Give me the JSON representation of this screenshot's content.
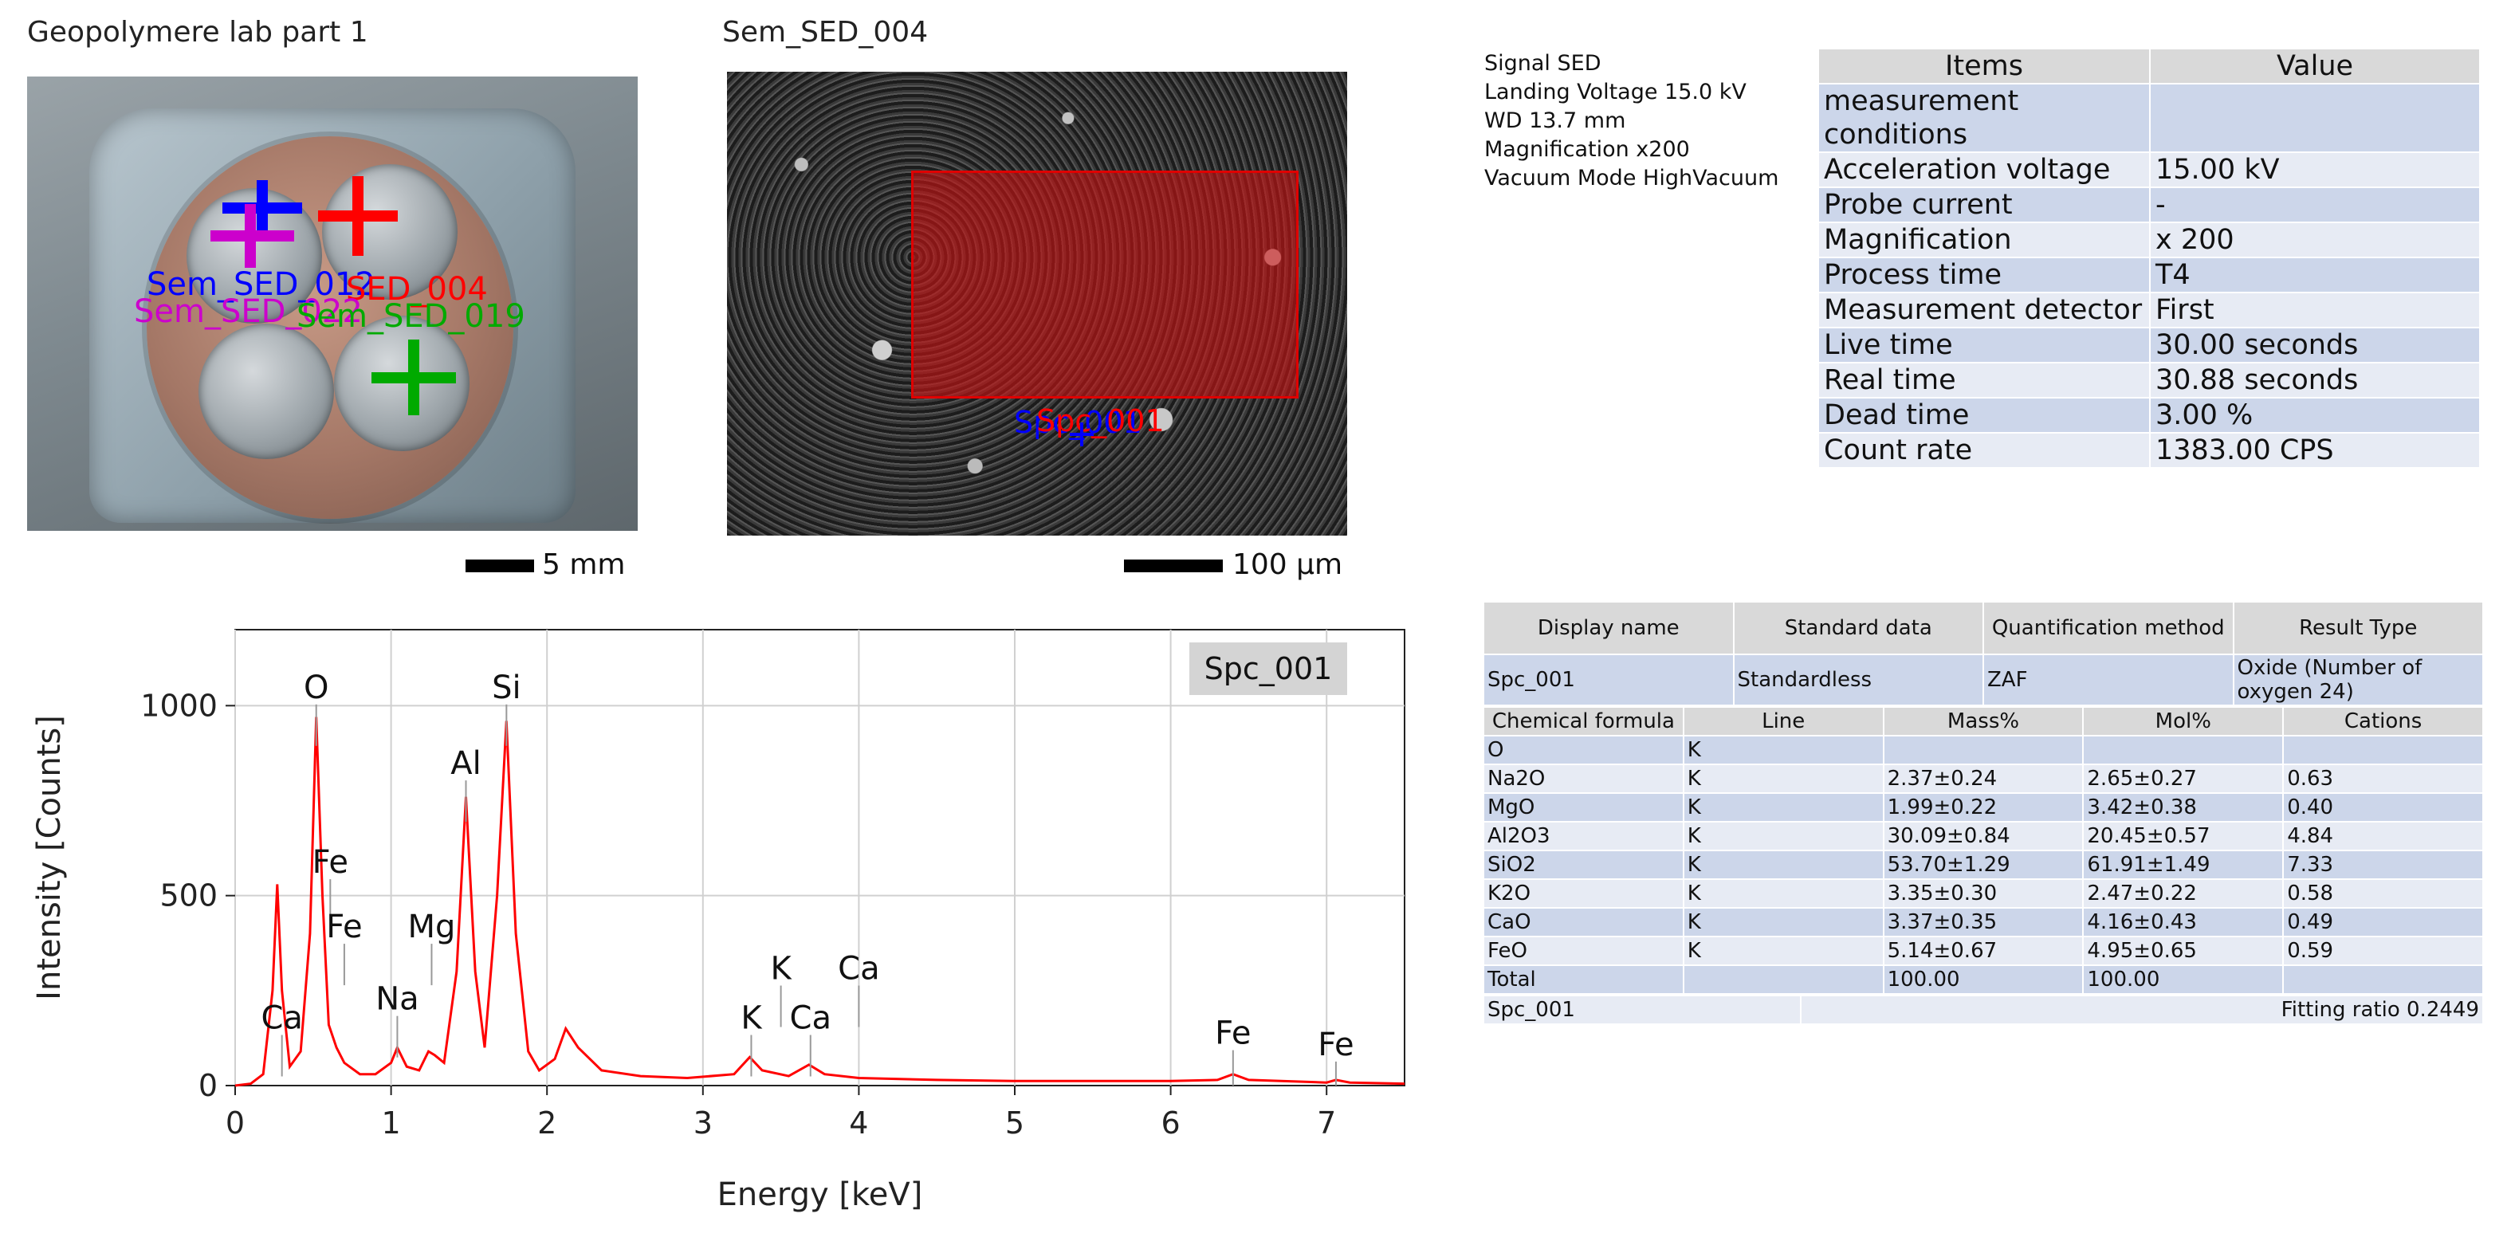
{
  "photo": {
    "title": "Geopolymere lab part 1",
    "markers": [
      {
        "label": "Sem_SED_012",
        "color": "#0000ff"
      },
      {
        "label": "SED_004",
        "color": "#ff0000"
      },
      {
        "label": "Sem_SED_022",
        "color": "#cc00cc"
      },
      {
        "label": "Sem_SED_019",
        "color": "#00aa00"
      }
    ],
    "scale_label": "5 mm"
  },
  "sem": {
    "title": "Sem_SED_004",
    "roi_color": "#e00000",
    "labels": [
      {
        "text": "Spc_001",
        "color": "#0000ff"
      },
      {
        "text": "Spc_001",
        "color": "#ff0000"
      }
    ],
    "scale_label": "100 µm"
  },
  "info": {
    "lines": [
      "Signal SED",
      "Landing Voltage 15.0 kV",
      "WD 13.7 mm",
      "Magnification x200",
      "Vacuum Mode HighVacuum"
    ]
  },
  "conditions": {
    "headers": [
      "Items",
      "Value"
    ],
    "rows": [
      [
        "measurement conditions",
        ""
      ],
      [
        "Acceleration voltage",
        "15.00 kV"
      ],
      [
        "Probe current",
        "-"
      ],
      [
        "Magnification",
        "x 200"
      ],
      [
        "Process time",
        "T4"
      ],
      [
        "Measurement detector",
        "First"
      ],
      [
        "Live time",
        "30.00 seconds"
      ],
      [
        "Real time",
        "30.88 seconds"
      ],
      [
        "Dead time",
        "3.00 %"
      ],
      [
        "Count rate",
        "1383.00 CPS"
      ]
    ]
  },
  "results": {
    "headers": [
      "Display name",
      "Standard data",
      "Quantification method",
      "Result Type"
    ],
    "spc": [
      "Spc_001",
      "Standardless",
      "ZAF",
      "Oxide (Number of oxygen 24)"
    ],
    "element_headers": [
      "Chemical formula",
      "Line",
      "Mass%",
      "Mol%",
      "Cations"
    ],
    "rows": [
      [
        "O",
        "K",
        "",
        "",
        ""
      ],
      [
        "Na2O",
        "K",
        "2.37±0.24",
        "2.65±0.27",
        "0.63"
      ],
      [
        "MgO",
        "K",
        "1.99±0.22",
        "3.42±0.38",
        "0.40"
      ],
      [
        "Al2O3",
        "K",
        "30.09±0.84",
        "20.45±0.57",
        "4.84"
      ],
      [
        "SiO2",
        "K",
        "53.70±1.29",
        "61.91±1.49",
        "7.33"
      ],
      [
        "K2O",
        "K",
        "3.35±0.30",
        "2.47±0.22",
        "0.58"
      ],
      [
        "CaO",
        "K",
        "3.37±0.35",
        "4.16±0.43",
        "0.49"
      ],
      [
        "FeO",
        "K",
        "5.14±0.67",
        "4.95±0.65",
        "0.59"
      ],
      [
        "Total",
        "",
        "100.00",
        "100.00",
        ""
      ]
    ],
    "footer_name": "Spc_001",
    "footer_fit": "Fitting ratio 0.2449"
  },
  "chart_data": {
    "type": "line",
    "legend": "Spc_001",
    "xlabel": "Energy [keV]",
    "ylabel": "Intensity [Counts]",
    "xlim": [
      0,
      7.5
    ],
    "ylim": [
      0,
      1200
    ],
    "xticks": [
      0,
      1,
      2,
      3,
      4,
      5,
      6,
      7
    ],
    "yticks": [
      0,
      500,
      1000
    ],
    "grid": true,
    "line_color": "#ff0000",
    "series": [
      {
        "values": [
          [
            0,
            0
          ],
          [
            0.1,
            5
          ],
          [
            0.18,
            30
          ],
          [
            0.24,
            250
          ],
          [
            0.27,
            530
          ],
          [
            0.3,
            250
          ],
          [
            0.35,
            50
          ],
          [
            0.42,
            90
          ],
          [
            0.48,
            400
          ],
          [
            0.52,
            970
          ],
          [
            0.56,
            500
          ],
          [
            0.6,
            160
          ],
          [
            0.65,
            100
          ],
          [
            0.7,
            60
          ],
          [
            0.8,
            30
          ],
          [
            0.9,
            30
          ],
          [
            1.0,
            60
          ],
          [
            1.04,
            100
          ],
          [
            1.1,
            50
          ],
          [
            1.18,
            40
          ],
          [
            1.24,
            90
          ],
          [
            1.28,
            80
          ],
          [
            1.34,
            60
          ],
          [
            1.42,
            300
          ],
          [
            1.48,
            760
          ],
          [
            1.54,
            300
          ],
          [
            1.6,
            100
          ],
          [
            1.68,
            500
          ],
          [
            1.74,
            960
          ],
          [
            1.8,
            400
          ],
          [
            1.88,
            90
          ],
          [
            1.95,
            40
          ],
          [
            2.05,
            70
          ],
          [
            2.12,
            150
          ],
          [
            2.2,
            100
          ],
          [
            2.35,
            40
          ],
          [
            2.6,
            25
          ],
          [
            2.9,
            20
          ],
          [
            3.2,
            30
          ],
          [
            3.3,
            75
          ],
          [
            3.38,
            40
          ],
          [
            3.55,
            25
          ],
          [
            3.68,
            55
          ],
          [
            3.78,
            30
          ],
          [
            4.0,
            20
          ],
          [
            4.5,
            15
          ],
          [
            5.0,
            12
          ],
          [
            5.5,
            12
          ],
          [
            6.0,
            12
          ],
          [
            6.3,
            15
          ],
          [
            6.4,
            30
          ],
          [
            6.5,
            15
          ],
          [
            7.0,
            8
          ],
          [
            7.06,
            15
          ],
          [
            7.15,
            8
          ],
          [
            7.5,
            5
          ]
        ]
      }
    ],
    "annotations": [
      {
        "text": "O",
        "x": 0.52,
        "y": 1020
      },
      {
        "text": "Si",
        "x": 1.74,
        "y": 1020
      },
      {
        "text": "Al",
        "x": 1.48,
        "y": 820
      },
      {
        "text": "Fe",
        "x": 0.61,
        "y": 560
      },
      {
        "text": "Fe",
        "x": 0.7,
        "y": 390
      },
      {
        "text": "Mg",
        "x": 1.26,
        "y": 390
      },
      {
        "text": "Na",
        "x": 1.04,
        "y": 200
      },
      {
        "text": "Ca",
        "x": 0.3,
        "y": 150
      },
      {
        "text": "K",
        "x": 3.5,
        "y": 280
      },
      {
        "text": "Ca",
        "x": 4.0,
        "y": 280
      },
      {
        "text": "K",
        "x": 3.31,
        "y": 150
      },
      {
        "text": "Ca",
        "x": 3.69,
        "y": 150
      },
      {
        "text": "Fe",
        "x": 6.4,
        "y": 110
      },
      {
        "text": "Fe",
        "x": 7.06,
        "y": 80
      }
    ]
  }
}
